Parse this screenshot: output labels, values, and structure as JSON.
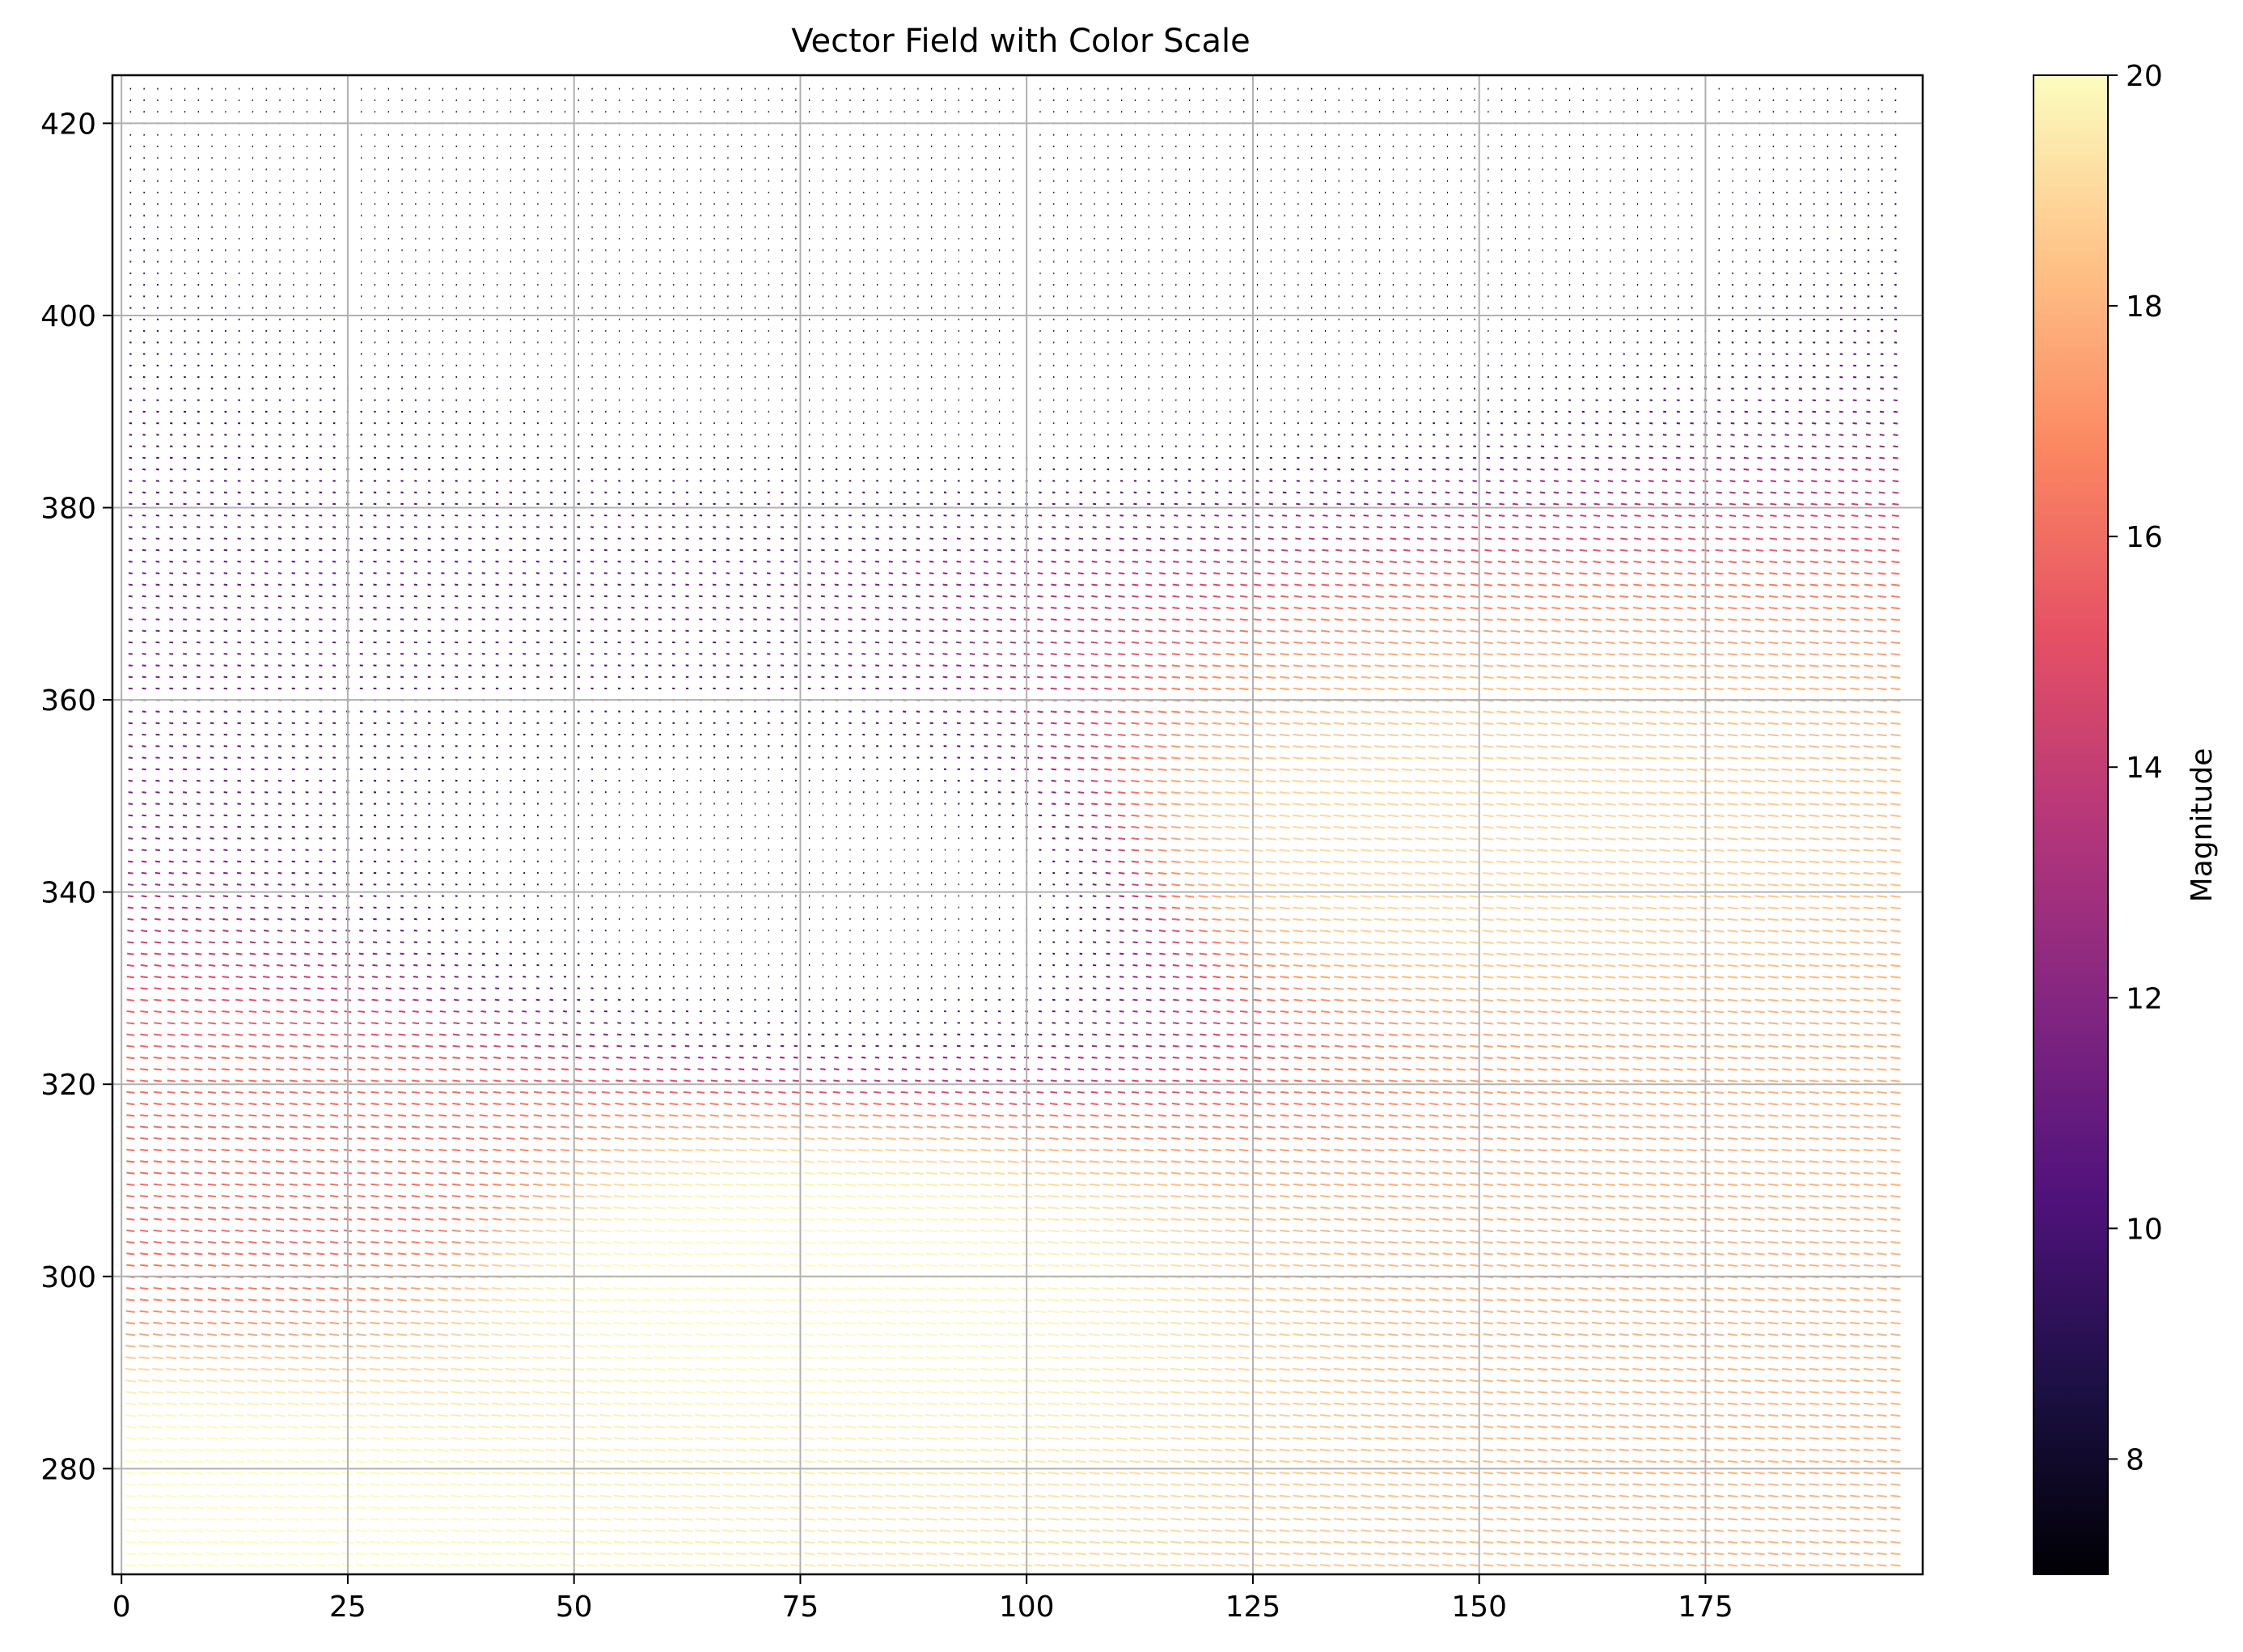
{
  "chart_data": {
    "type": "quiver",
    "title": "Vector Field with Color Scale",
    "xlabel": "",
    "ylabel": "",
    "xlim": [
      -1,
      199
    ],
    "ylim": [
      269,
      425
    ],
    "x_ticks": [
      0,
      25,
      50,
      75,
      100,
      125,
      150,
      175
    ],
    "y_ticks": [
      280,
      300,
      320,
      340,
      360,
      380,
      400,
      420
    ],
    "grid": true,
    "colormap": "magma",
    "colormap_stops": [
      "#000004",
      "#1c1044",
      "#4f127b",
      "#812581",
      "#b5367a",
      "#e55064",
      "#fb8761",
      "#fec287",
      "#fcfdbf"
    ],
    "colorbar": {
      "label": "Magnitude",
      "range": [
        7,
        20
      ],
      "ticks": [
        8,
        10,
        12,
        14,
        16,
        18,
        20
      ]
    },
    "grid_x_range": [
      1,
      197
    ],
    "grid_y_range": [
      270,
      424
    ],
    "magnitude_field": {
      "description_points": [
        {
          "x": 70,
          "y": 300,
          "magnitude": 20
        },
        {
          "x": 5,
          "y": 275,
          "magnitude": 20
        },
        {
          "x": 140,
          "y": 345,
          "magnitude": 19
        },
        {
          "x": 15,
          "y": 310,
          "magnitude": 16
        },
        {
          "x": 190,
          "y": 300,
          "magnitude": 18
        },
        {
          "x": 80,
          "y": 340,
          "magnitude": 8
        },
        {
          "x": 100,
          "y": 410,
          "magnitude": 7.5
        }
      ]
    }
  }
}
